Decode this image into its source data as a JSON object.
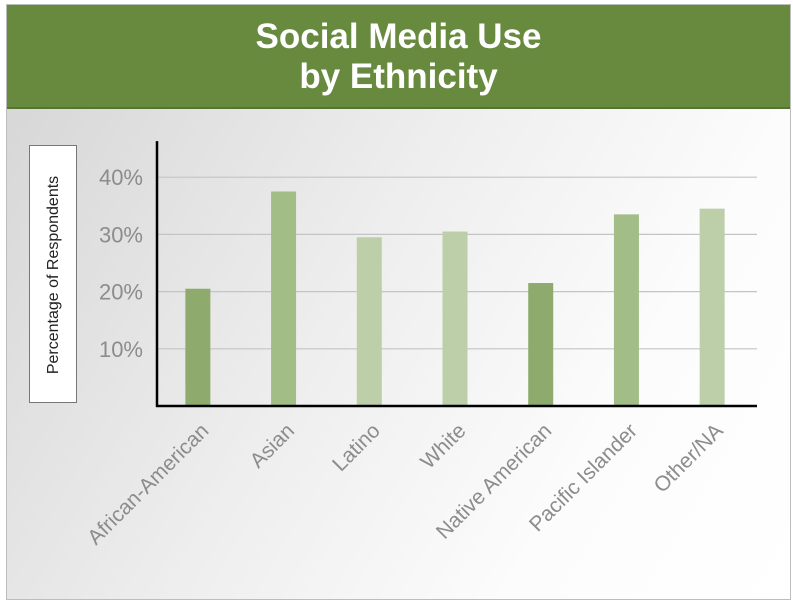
{
  "chart_data": {
    "type": "bar",
    "title": "Social Media Use\nby Ethnicity",
    "ylabel": "Percentage of Respondents",
    "xlabel": "",
    "categories": [
      "African-American",
      "Asian",
      "Latino",
      "White",
      "Native American",
      "Pacific Islander",
      "Other/NA"
    ],
    "values": [
      20.5,
      37.5,
      29.5,
      30.5,
      21.5,
      33.5,
      34.5
    ],
    "ylim": [
      0,
      47
    ],
    "yticks": [
      10,
      20,
      30,
      40
    ],
    "ytick_labels": [
      "10%",
      "20%",
      "30%",
      "40%"
    ],
    "grid": true,
    "legend": "none"
  },
  "colors": {
    "title_band": "#688a3f",
    "bar_palette": [
      "#8eab6d",
      "#a3bd87",
      "#bccfa8"
    ],
    "bar_color_index": [
      0,
      1,
      2,
      2,
      0,
      1,
      2
    ],
    "gridline": "#c4c4c4",
    "axis": "#000000",
    "tick_text": "#8c8c8c"
  }
}
